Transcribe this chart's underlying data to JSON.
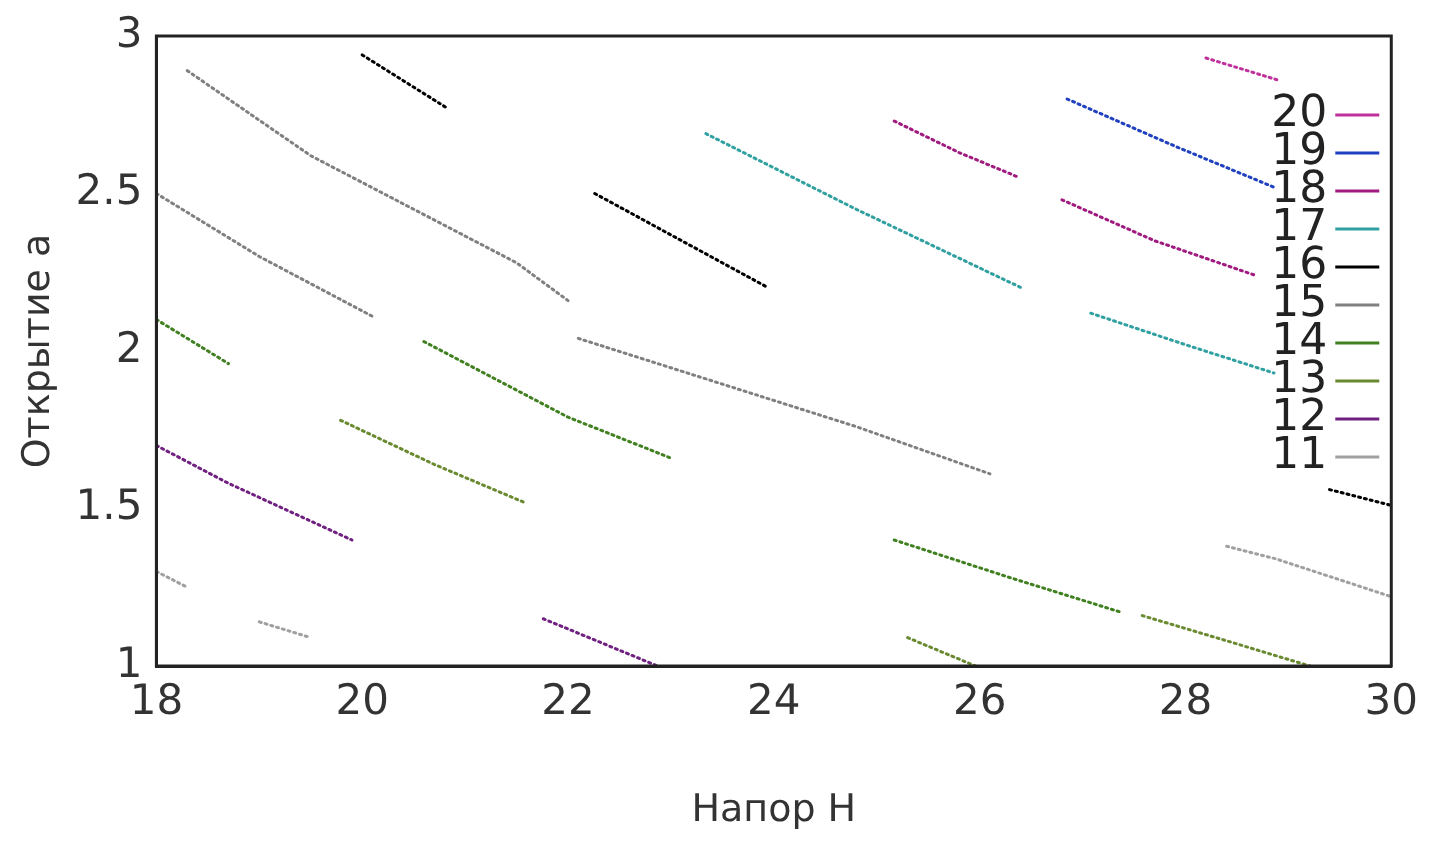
{
  "chart_data": {
    "type": "line",
    "xlabel": "Напор H",
    "ylabel": "Открытие a",
    "xlim": [
      18,
      30
    ],
    "xticks": [
      18,
      20,
      22,
      24,
      26,
      28,
      30
    ],
    "ylim": [
      1,
      3
    ],
    "yticks": [
      1,
      1.5,
      2,
      2.5,
      3
    ],
    "grid": false,
    "legend": "right",
    "marker": "none",
    "line_style": "dotted",
    "series": [
      {
        "name": "20",
        "color": "#c0309a",
        "x": [
          28.2,
          28.9
        ],
        "values": [
          2.93,
          2.86
        ]
      },
      {
        "name": "19",
        "color": "#2040c0",
        "x": [
          26.85,
          27.9,
          28.86
        ],
        "values": [
          2.8,
          2.65,
          2.52
        ]
      },
      {
        "name": "18",
        "color": "#a01a80",
        "x": [
          25.17,
          25.8,
          26.39,
          null,
          26.8,
          27.7,
          28.68
        ],
        "values": [
          2.73,
          2.63,
          2.55,
          null,
          2.48,
          2.35,
          2.24
        ]
      },
      {
        "name": "17",
        "color": "#30a0a0",
        "x": [
          23.34,
          24.8,
          26.41,
          null,
          27.08,
          28.0,
          28.86
        ],
        "values": [
          2.69,
          2.45,
          2.2,
          null,
          2.12,
          2.02,
          1.93
        ]
      },
      {
        "name": "16",
        "color": "#000000",
        "x": [
          20.0,
          20.83,
          null,
          22.26,
          23.95,
          null,
          29.4,
          30
        ],
        "values": [
          2.94,
          2.77,
          null,
          2.5,
          2.2,
          null,
          1.56,
          1.51
        ]
      },
      {
        "name": "15",
        "color": "#808080",
        "x": [
          18.3,
          19.5,
          20.5,
          21.5,
          22.0,
          null,
          18,
          19.0,
          20.1,
          null,
          22.1,
          24.8,
          26.1
        ],
        "values": [
          2.89,
          2.62,
          2.45,
          2.28,
          2.16,
          null,
          2.5,
          2.3,
          2.11,
          null,
          2.04,
          1.76,
          1.61
        ]
      },
      {
        "name": "14",
        "color": "#408020",
        "x": [
          18,
          18.7,
          null,
          20.6,
          22.0,
          23.0,
          null,
          25.17,
          26.3,
          27.38
        ],
        "values": [
          2.1,
          1.96,
          null,
          2.03,
          1.79,
          1.66,
          null,
          1.4,
          1.28,
          1.17
        ]
      },
      {
        "name": "13",
        "color": "#6a8a30",
        "x": [
          19.79,
          20.7,
          21.57,
          null,
          27.58,
          28.4,
          29.21,
          null,
          25.3,
          25.96
        ],
        "values": [
          1.78,
          1.64,
          1.52,
          null,
          1.16,
          1.08,
          1.0,
          null,
          1.09,
          1.0
        ]
      },
      {
        "name": "12",
        "color": "#702080",
        "x": [
          18,
          18.7,
          19.9,
          null,
          21.76,
          22.87
        ],
        "values": [
          1.7,
          1.58,
          1.4,
          null,
          1.15,
          1.0
        ]
      },
      {
        "name": "11",
        "color": "#a0a0a0",
        "x": [
          18,
          18.3,
          null,
          19.0,
          19.5,
          null,
          28.4,
          28.88,
          30
        ],
        "values": [
          1.3,
          1.25,
          null,
          1.14,
          1.09,
          null,
          1.38,
          1.34,
          1.22
        ]
      }
    ]
  }
}
